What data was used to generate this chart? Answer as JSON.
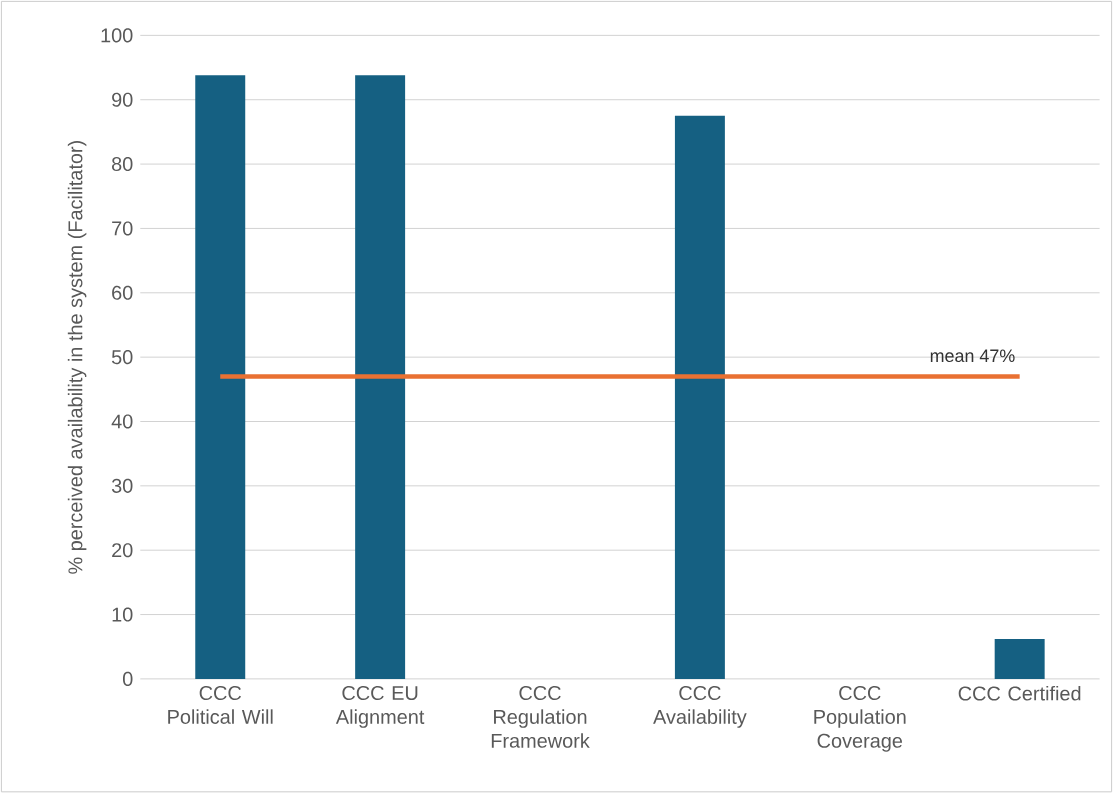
{
  "chart_data": {
    "type": "bar",
    "ylabel": "% perceived availability in the system (Facilitator)",
    "categories": [
      "CCC Political Will",
      "CCC EU Alignment",
      "CCC Regulation Framework",
      "CCC Availability",
      "CCC Population Coverage",
      "CCC Certified"
    ],
    "values": [
      93.8,
      93.8,
      0,
      87.5,
      0,
      6.2
    ],
    "color": "#156082",
    "ylim": [
      0,
      100
    ],
    "yticks": [
      0,
      10,
      20,
      30,
      40,
      50,
      60,
      70,
      80,
      90,
      100
    ],
    "grid": "y",
    "ref_lines": [
      {
        "axis": "y",
        "value": 47,
        "label": "mean 47%",
        "color": "#e97132",
        "line_style": "solid"
      }
    ]
  }
}
